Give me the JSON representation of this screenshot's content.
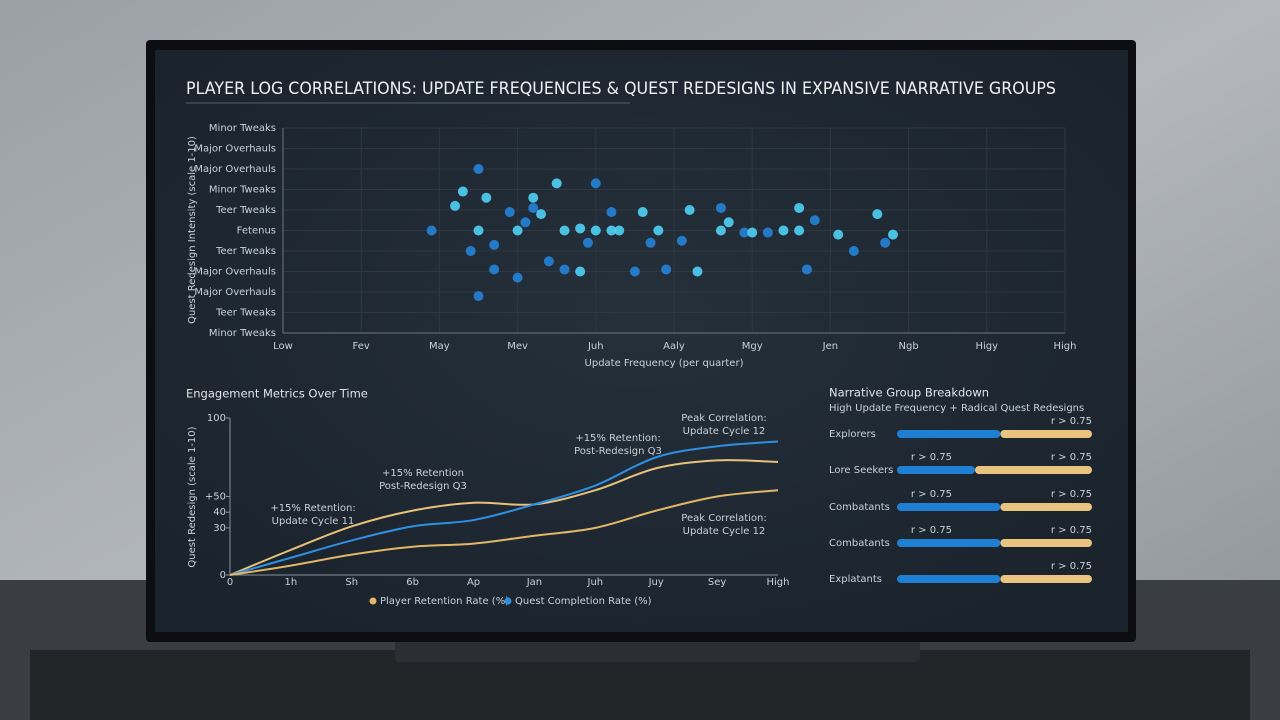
{
  "chart_data": [
    {
      "type": "scatter",
      "title": "PLAYER LOG CORRELATIONS: UPDATE FREQUENCIES & QUEST REDESIGNS IN EXPANSIVE NARRATIVE GROUPS",
      "x_label": "Update Frequency (per quarter)",
      "y_label": "Quest Redesign Intensity (scale 1-10)",
      "xlim": [
        0,
        10
      ],
      "ylim": [
        0,
        10
      ],
      "grid": true,
      "xticks": [
        {
          "value": 0,
          "label": "Low"
        },
        {
          "value": 1,
          "label": "Fev"
        },
        {
          "value": 2,
          "label": "May"
        },
        {
          "value": 3,
          "label": "Mev"
        },
        {
          "value": 4,
          "label": "Juh"
        },
        {
          "value": 5,
          "label": "Aaly"
        },
        {
          "value": 6,
          "label": "Mgy"
        },
        {
          "value": 7,
          "label": "Jen"
        },
        {
          "value": 8,
          "label": "Ngb"
        },
        {
          "value": 9,
          "label": "Higy"
        },
        {
          "value": 10,
          "label": "High"
        }
      ],
      "yticks": [
        {
          "value": 0,
          "label": "Minor Tweaks"
        },
        {
          "value": 1,
          "label": "Teer Tweaks"
        },
        {
          "value": 2,
          "label": "Major Overhauls"
        },
        {
          "value": 3,
          "label": "Major Overhauls"
        },
        {
          "value": 4,
          "label": "Teer Tweaks"
        },
        {
          "value": 5,
          "label": "Fetenus"
        },
        {
          "value": 6,
          "label": "Teer Tweaks"
        },
        {
          "value": 7,
          "label": "Minor Tweaks"
        },
        {
          "value": 8,
          "label": "Major Overhauls"
        },
        {
          "value": 9,
          "label": "Major Overhauls"
        },
        {
          "value": 10,
          "label": "Minor Tweaks"
        }
      ],
      "series": [
        {
          "color": "#2583d6",
          "x": [
            1.9,
            2.4,
            2.5,
            2.7,
            2.7,
            2.9,
            3.0,
            3.1,
            3.4,
            3.6,
            3.9,
            4.0,
            4.2,
            4.5,
            4.7,
            4.9,
            5.1,
            5.6,
            5.9,
            6.2,
            6.7,
            6.8,
            7.3,
            7.7,
            2.5,
            3.2
          ],
          "values": [
            5.0,
            4.0,
            1.8,
            3.1,
            4.3,
            5.9,
            2.7,
            5.4,
            3.5,
            3.1,
            4.4,
            7.3,
            5.9,
            3.0,
            4.4,
            3.1,
            4.5,
            6.1,
            4.9,
            4.9,
            3.1,
            5.5,
            4.0,
            4.4,
            8.0,
            6.1
          ]
        },
        {
          "color": "#4fd2f6",
          "x": [
            2.2,
            2.3,
            2.5,
            2.6,
            3.0,
            3.2,
            3.3,
            3.5,
            3.6,
            3.8,
            3.8,
            4.0,
            4.2,
            4.3,
            4.6,
            4.8,
            5.2,
            5.3,
            5.6,
            5.7,
            6.0,
            6.4,
            6.6,
            6.6,
            7.1,
            7.6,
            7.8
          ],
          "values": [
            6.2,
            6.9,
            5.0,
            6.6,
            5.0,
            6.6,
            5.8,
            7.3,
            5.0,
            5.1,
            3.0,
            5.0,
            5.0,
            5.0,
            5.9,
            5.0,
            6.0,
            3.0,
            5.0,
            5.4,
            4.9,
            5.0,
            6.1,
            5.0,
            4.8,
            5.8,
            4.8
          ]
        }
      ]
    },
    {
      "type": "line",
      "title": "Engagement Metrics Over Time",
      "y_label": "Quest Redesign (scale 1-10)",
      "categories": [
        "0",
        "1h",
        "Sh",
        "6b",
        "Ap",
        "Jan",
        "Juh",
        "Juy",
        "Sey",
        "High"
      ],
      "ylim": [
        0,
        100
      ],
      "yticks": [
        0,
        30,
        40,
        {
          "value": 50,
          "label": "+50"
        },
        100
      ],
      "series": [
        {
          "color": "#e7c27a",
          "values": [
            0,
            16,
            31,
            41,
            46,
            45,
            54,
            68,
            73,
            72
          ]
        },
        {
          "name": "Quest Completion Rate (%)",
          "color": "#2e8fe3",
          "values": [
            0,
            11,
            22,
            31,
            35,
            45,
            57,
            75,
            82,
            85
          ]
        },
        {
          "name": "Player Retention Rate (%)",
          "color": "#e2b868",
          "values": [
            0,
            6,
            13,
            18,
            20,
            25,
            30,
            41,
            50,
            54
          ]
        }
      ],
      "annotations": [
        [
          "+15% Retention:",
          "Update Cycle 11"
        ],
        [
          "+15% Retention",
          "Post-Redesign Q3"
        ],
        [
          "+15% Retention:",
          "Post-Redesign Q3"
        ],
        [
          "Peak Correlation:",
          "Update Cycle 12"
        ],
        [
          "Peak Correlation:",
          "Update Cycle 12"
        ]
      ]
    },
    {
      "type": "hbar",
      "title": "Narrative Group Breakdown",
      "subtitle": "High Update Frequency + Radical Quest Redesigns",
      "categories": [
        "Explorers",
        "Lore Seekers",
        "Combatants",
        "Combatants",
        "Explatants"
      ],
      "xlim": [
        0,
        100
      ],
      "series": [
        {
          "color": "#1f7fd3",
          "values": [
            53,
            40,
            53,
            53,
            53
          ]
        },
        {
          "color": "#e8c47e",
          "values": [
            47,
            60,
            47,
            47,
            47
          ]
        }
      ],
      "annotations": [
        [
          "r > 0.75"
        ],
        [
          "r > 0.75",
          "r > 0.75"
        ],
        [
          "r > 0.75",
          "r > 0.75"
        ],
        [
          "r > 0.75",
          "r > 0.75"
        ],
        [
          "r > 0.75"
        ]
      ]
    }
  ]
}
